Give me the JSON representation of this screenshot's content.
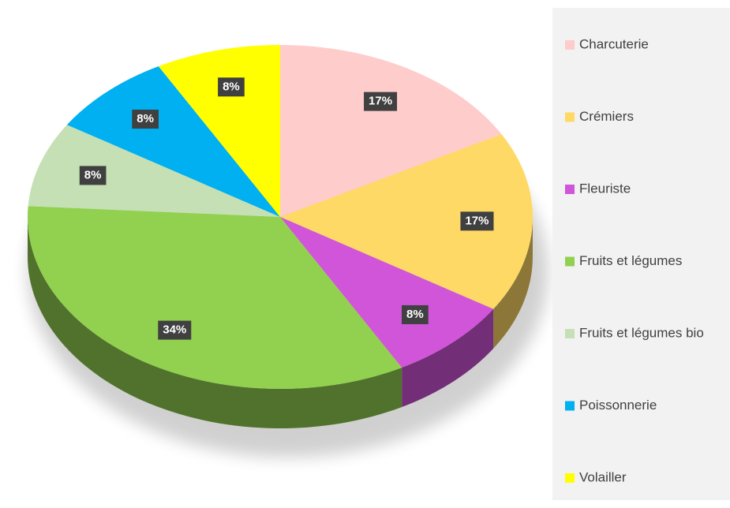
{
  "chart_data": {
    "type": "pie",
    "categories": [
      "Charcuterie",
      "Crémiers",
      "Fleuriste",
      "Fruits et légumes",
      "Fruits et légumes bio",
      "Poissonnerie",
      "Volailler"
    ],
    "values": [
      17,
      17,
      8,
      34,
      8,
      8,
      8
    ],
    "value_labels": [
      "17%",
      "17%",
      "8%",
      "34%",
      "8%",
      "8%",
      "8%"
    ],
    "colors": [
      "#ffcccc",
      "#ffd966",
      "#d055d8",
      "#92d050",
      "#c5e0b4",
      "#00b0f0",
      "#ffff00"
    ],
    "legend": "right"
  }
}
